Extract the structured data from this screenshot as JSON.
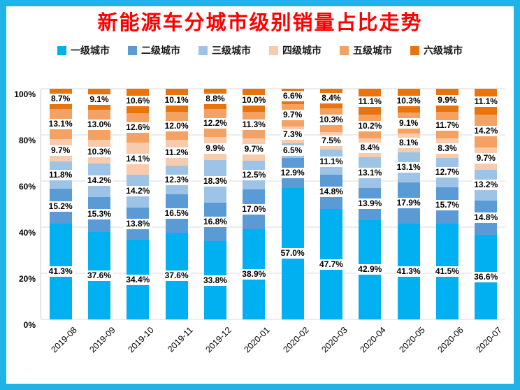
{
  "theme": {
    "border_color": "#20b3e8",
    "title_color": "#ff0000",
    "grid_color": "#d9d9d9",
    "label_bg": "#ffffff"
  },
  "title": "新能源车分城市级别销量占比走势",
  "chart_data": {
    "type": "bar",
    "stacked": true,
    "percent_stacked": true,
    "title": "新能源车分城市级别销量占比走势",
    "legend_position": "top",
    "grid": true,
    "ylim": [
      0,
      100
    ],
    "yticks": [
      "0%",
      "20%",
      "40%",
      "60%",
      "80%",
      "100%"
    ],
    "ytick_values": [
      0,
      20,
      40,
      60,
      80,
      100
    ],
    "categories": [
      "2019-08",
      "2019-09",
      "2019-10",
      "2019-11",
      "2019-12",
      "2020-01",
      "2020-02",
      "2020-03",
      "2020-04",
      "2020-05",
      "2020-06",
      "2020-07"
    ],
    "series": [
      {
        "name": "一级城市",
        "color": "#00b0f0",
        "values": [
          41.3,
          37.6,
          34.4,
          37.6,
          33.8,
          38.9,
          57.0,
          47.7,
          42.9,
          41.3,
          41.5,
          36.6
        ]
      },
      {
        "name": "二级城市",
        "color": "#5b9bd5",
        "values": [
          15.2,
          15.3,
          13.8,
          16.5,
          16.8,
          17.0,
          12.9,
          14.8,
          13.9,
          17.9,
          15.7,
          14.8
        ]
      },
      {
        "name": "三级城市",
        "color": "#9dc3e6",
        "values": [
          11.8,
          14.2,
          14.2,
          12.3,
          18.3,
          12.5,
          6.5,
          11.1,
          13.1,
          13.1,
          12.7,
          13.2
        ]
      },
      {
        "name": "四级城市",
        "color": "#f8cbad",
        "values": [
          9.7,
          10.3,
          14.1,
          11.2,
          9.9,
          9.7,
          7.3,
          7.5,
          8.4,
          8.1,
          8.3,
          9.7
        ]
      },
      {
        "name": "五级城市",
        "color": "#f4a263",
        "values": [
          13.1,
          13.0,
          12.6,
          12.0,
          12.2,
          11.3,
          9.7,
          10.3,
          10.2,
          9.1,
          11.7,
          14.2
        ]
      },
      {
        "name": "六级城市",
        "color": "#e9730d",
        "values": [
          8.7,
          9.1,
          10.6,
          10.1,
          8.8,
          10.0,
          6.6,
          8.4,
          11.1,
          10.3,
          9.9,
          11.1
        ]
      }
    ]
  }
}
